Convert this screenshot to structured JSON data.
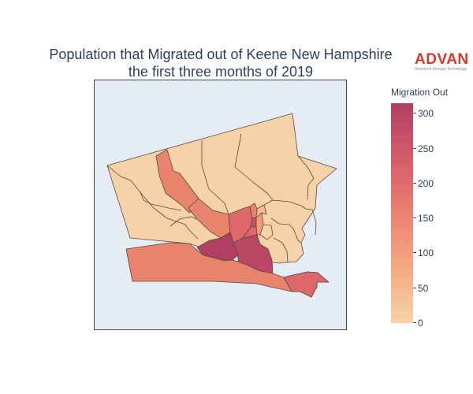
{
  "title": {
    "line1": "Population that Migrated out of Keene New Hampshire",
    "line2": "the first three months of 2019"
  },
  "logo": {
    "name": "ADVAN",
    "tagline": "Research through Technology"
  },
  "colors": {
    "title": "#2a3f5f",
    "map_background": "#e5ecf6",
    "border": "#444444",
    "scale": [
      "#f6d2a9",
      "#f5b78e",
      "#f19c7c",
      "#ea8171",
      "#dd686c",
      "#ca5268",
      "#b13f64"
    ]
  },
  "colorbar": {
    "title": "Migration Out",
    "min": 0,
    "max": 315,
    "ticks": [
      "0",
      "50",
      "100",
      "150",
      "200",
      "250",
      "300"
    ]
  },
  "map": {
    "type": "choropleth",
    "location": "Keene, New Hampshire"
  }
}
